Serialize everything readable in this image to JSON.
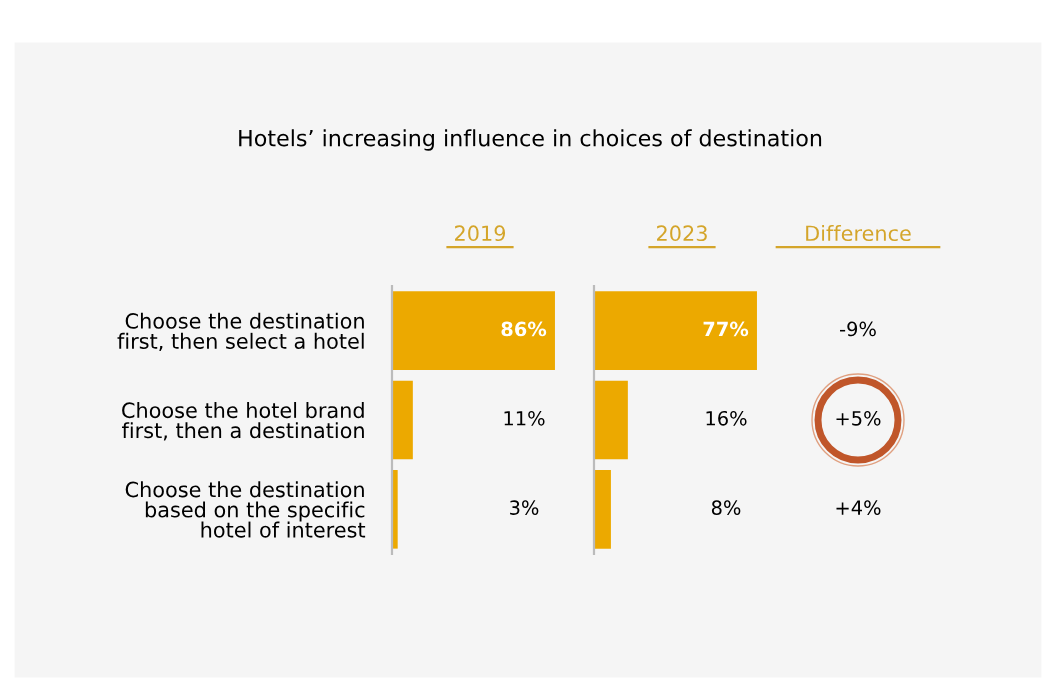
{
  "chart_data": [
    {
      "type": "bar",
      "orientation": "horizontal",
      "title": "Hotels’ increasing influence in choices of destination",
      "subtitle": "2019",
      "categories": [
        "Choose the destination\nfirst, then select a hotel",
        "Choose the hotel brand\nfirst, then a destination",
        "Choose the destination\nbased on the specific\nhotel of interest"
      ],
      "values": [
        86,
        11,
        3
      ],
      "value_labels": [
        "86%",
        "11%",
        "3%"
      ],
      "color": "#eca900",
      "tick_labels": "y"
    },
    {
      "type": "bar",
      "orientation": "horizontal",
      "title": "2023",
      "categories": [
        null,
        null,
        null
      ],
      "values": [
        77,
        16,
        8
      ],
      "value_labels": [
        "77%",
        "16%",
        "8%"
      ],
      "color": "#eca900",
      "tick_labels": false
    },
    {
      "type": "other",
      "title": "Difference",
      "annotations": [
        "-9%",
        "+5%",
        "+4%"
      ]
    }
  ]
}
